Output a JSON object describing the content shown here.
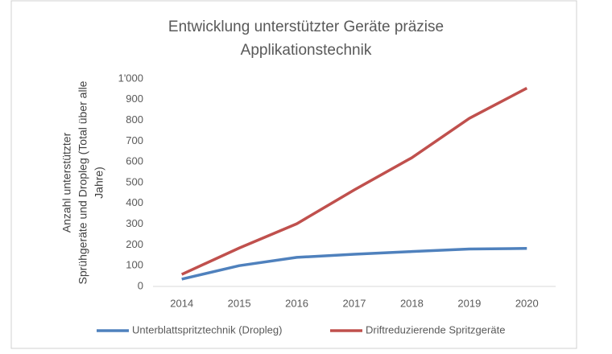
{
  "chart_data": {
    "type": "line",
    "title": [
      "Entwicklung unterstützter Geräte präzise",
      "Applikationstechnik"
    ],
    "ylabel": [
      "Anzahl unterstützter",
      "Sprühgeräte und Dropleg (Total über alle",
      "Jahre)"
    ],
    "categories": [
      "2014",
      "2015",
      "2016",
      "2017",
      "2018",
      "2019",
      "2020"
    ],
    "series": [
      {
        "name": "Unterblattspritztechnik (Dropleg)",
        "color": "#4f81bd",
        "values": [
          35,
          100,
          140,
          155,
          168,
          180,
          183
        ]
      },
      {
        "name": "Driftreduzierende Spritzgeräte",
        "color": "#c0504d",
        "values": [
          58,
          185,
          302,
          465,
          620,
          810,
          955
        ]
      }
    ],
    "ylim": [
      0,
      1000
    ],
    "yticks": [
      0,
      100,
      200,
      300,
      400,
      500,
      600,
      700,
      800,
      900,
      {
        "value": 1000,
        "label": "1'000"
      }
    ],
    "grid": false,
    "legend": "bottom"
  }
}
